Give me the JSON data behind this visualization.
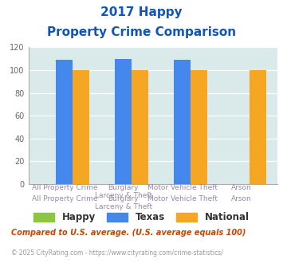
{
  "title_line1": "2017 Happy",
  "title_line2": "Property Crime Comparison",
  "groups": [
    {
      "label_top": "",
      "label_bot": "All Property Crime",
      "happy": 0,
      "texas": 109,
      "national": 100
    },
    {
      "label_top": "Burglary",
      "label_bot": "Larceny & Theft",
      "happy": 0,
      "texas": 110,
      "national": 100
    },
    {
      "label_top": "Motor Vehicle Theft",
      "label_bot": "",
      "happy": 0,
      "texas": 109,
      "national": 100
    },
    {
      "label_top": "",
      "label_bot": "Arson",
      "happy": 0,
      "texas": 0,
      "national": 100
    }
  ],
  "colors": {
    "happy": "#8dc63f",
    "texas": "#4488ee",
    "national": "#f5a623"
  },
  "ylim": [
    0,
    120
  ],
  "yticks": [
    0,
    20,
    40,
    60,
    80,
    100,
    120
  ],
  "background_color": "#daeaea",
  "title_color": "#1155bb",
  "xlabel_color": "#9988aa",
  "legend_label_color": "#333333",
  "footnote1": "Compared to U.S. average. (U.S. average equals 100)",
  "footnote2": "© 2025 CityRating.com - https://www.cityrating.com/crime-statistics/",
  "footnote1_color": "#cc4400",
  "footnote2_color": "#999999"
}
